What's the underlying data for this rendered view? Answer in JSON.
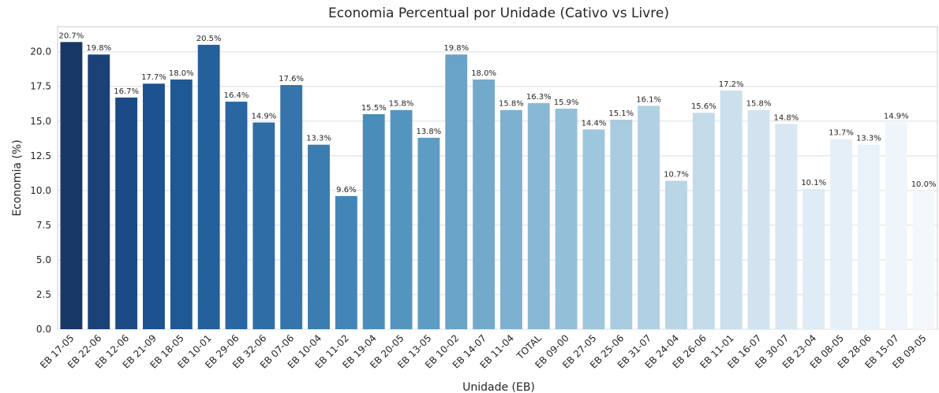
{
  "chart_data": {
    "type": "bar",
    "title": "Economia Percentual por Unidade (Cativo vs Livre)",
    "x_label": "Unidade (EB)",
    "y_label": "Economia (%)",
    "categories": [
      "EB 17-05",
      "EB 22-06",
      "EB 12-06",
      "EB 21-09",
      "EB 18-05",
      "EB 10-01",
      "EB 29-06",
      "EB 32-06",
      "EB 07-06",
      "EB 10-04",
      "EB 11-02",
      "EB 19-04",
      "EB 20-05",
      "EB 13-05",
      "EB 10-02",
      "EB 14-07",
      "EB 11-04",
      "TOTAL",
      "EB 09-00",
      "EB 27-05",
      "EB 25-06",
      "EB 31-07",
      "EB 24-04",
      "EB 26-06",
      "EB 11-01",
      "EB 16-07",
      "EB 30-07",
      "EB 23-04",
      "EB 08-05",
      "EB 28-06",
      "EB 15-07",
      "EB 09-05"
    ],
    "values": [
      20.7,
      19.8,
      16.7,
      17.7,
      18.0,
      20.5,
      16.4,
      14.9,
      17.6,
      13.3,
      9.6,
      15.5,
      15.8,
      13.8,
      19.8,
      18.0,
      15.8,
      16.3,
      15.9,
      14.4,
      15.1,
      16.1,
      10.7,
      15.6,
      17.2,
      15.8,
      14.8,
      10.1,
      13.7,
      13.3,
      14.9,
      10.0
    ],
    "value_labels": [
      "20.7%",
      "19.8%",
      "16.7%",
      "17.7%",
      "18.0%",
      "20.5%",
      "16.4%",
      "14.9%",
      "17.6%",
      "13.3%",
      "9.6%",
      "15.5%",
      "15.8%",
      "13.8%",
      "19.8%",
      "18.0%",
      "15.8%",
      "16.3%",
      "15.9%",
      "14.4%",
      "15.1%",
      "16.1%",
      "10.7%",
      "15.6%",
      "17.2%",
      "15.8%",
      "14.8%",
      "10.1%",
      "13.7%",
      "13.3%",
      "14.9%",
      "10.0%"
    ],
    "colors": [
      "#173866",
      "#1a4279",
      "#1c4a87",
      "#1d5190",
      "#205896",
      "#23609c",
      "#2966a2",
      "#2e6da6",
      "#3575ab",
      "#3b7db0",
      "#4285b6",
      "#4a8dbb",
      "#5495bf",
      "#5e9cc3",
      "#69a3c7",
      "#73aacc",
      "#7eb1d0",
      "#89b8d4",
      "#94bfd8",
      "#9ec6dc",
      "#a8cbe0",
      "#b1d0e3",
      "#bad5e6",
      "#c3dae9",
      "#cbdfec",
      "#d2e3ef",
      "#d9e7f2",
      "#dfebf5",
      "#e5eff7",
      "#eaf2f9",
      "#eff5fb",
      "#f4f8fd"
    ],
    "ylim": [
      0,
      21.8
    ],
    "yticks": [
      {
        "value": 0,
        "label": "0.0"
      },
      2.5,
      {
        "value": 5,
        "label": "5.0"
      },
      7.5,
      {
        "value": 10,
        "label": "10.0"
      },
      12.5,
      {
        "value": 15,
        "label": "15.0"
      },
      17.5,
      {
        "value": 20,
        "label": "20.0"
      }
    ],
    "grid": true
  }
}
